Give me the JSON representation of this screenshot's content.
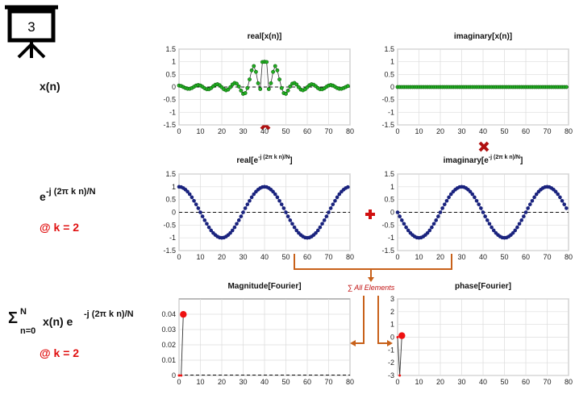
{
  "slide": {
    "number": "3"
  },
  "labels": {
    "xn": "x(n)",
    "kernel_e": "e",
    "kernel_exp": "-j (2π k n)/N",
    "k_note_1": "@ k = 2",
    "sum_sigma": "Σ",
    "sum_upper": "N",
    "sum_lower": "n=0",
    "sum_body": "x(n) e",
    "sum_exp": "-j (2π k n)/N",
    "k_note_2": "@ k = 2",
    "sum_all": "∑ All Elements"
  },
  "colors": {
    "green": "#22b022",
    "navy": "#1a237e",
    "red": "#ee1111",
    "arrow": "#c8611a"
  },
  "chart_data": [
    {
      "id": "real-x",
      "type": "line",
      "title": "real[x(n)]",
      "xlim": [
        0,
        80
      ],
      "ylim": [
        -1.5,
        1.5
      ],
      "xticks": [
        0,
        10,
        20,
        30,
        40,
        50,
        60,
        70,
        80
      ],
      "yticks": [
        1.5,
        1,
        0.5,
        0,
        -0.5,
        -1,
        -1.5
      ],
      "ytick_labels": [
        "1.5",
        "1",
        "0.5",
        "0",
        "-0.5",
        "-1",
        "-1.5"
      ],
      "grid": true,
      "zero_line": true,
      "series": [
        {
          "x": [
            0,
            1,
            2,
            3,
            4,
            5,
            6,
            7,
            8,
            9,
            10,
            11,
            12,
            13,
            14,
            15,
            16,
            17,
            18,
            19,
            20,
            21,
            22,
            23,
            24,
            25,
            26,
            27,
            28,
            29,
            30,
            31,
            32,
            33,
            34,
            35,
            36,
            37,
            38,
            39,
            40,
            41,
            42,
            43,
            44,
            45,
            46,
            47,
            48,
            49,
            50,
            51,
            52,
            53,
            54,
            55,
            56,
            57,
            58,
            59,
            60,
            61,
            62,
            63,
            64,
            65,
            66,
            67,
            68,
            69,
            70,
            71,
            72,
            73,
            74,
            75,
            76,
            77,
            78,
            79
          ],
          "y": [
            0.06,
            0.04,
            0.0,
            -0.04,
            -0.07,
            -0.07,
            -0.04,
            0.01,
            0.06,
            0.08,
            0.06,
            0.01,
            -0.05,
            -0.09,
            -0.09,
            -0.04,
            0.03,
            0.09,
            0.11,
            0.07,
            -0.01,
            -0.09,
            -0.13,
            -0.1,
            -0.01,
            0.1,
            0.16,
            0.13,
            0.02,
            -0.14,
            -0.27,
            -0.24,
            -0.04,
            0.3,
            0.66,
            0.83,
            0.6,
            0.15,
            -0.08,
            0.99,
            1.0,
            0.99,
            -0.08,
            0.15,
            0.6,
            0.83,
            0.66,
            0.3,
            -0.04,
            -0.24,
            -0.27,
            -0.14,
            0.02,
            0.13,
            0.16,
            0.1,
            -0.01,
            -0.1,
            -0.13,
            -0.09,
            -0.01,
            0.07,
            0.11,
            0.09,
            0.03,
            -0.04,
            -0.09,
            -0.09,
            -0.05,
            0.01,
            0.06,
            0.08,
            0.06,
            0.01,
            -0.04,
            -0.07,
            -0.07,
            -0.04,
            0.0,
            0.04
          ]
        }
      ]
    },
    {
      "id": "imag-x",
      "type": "line",
      "title": "imaginary[x(n)]",
      "xlim": [
        0,
        80
      ],
      "ylim": [
        -1.5,
        1.5
      ],
      "xticks": [
        0,
        10,
        20,
        30,
        40,
        50,
        60,
        70,
        80
      ],
      "yticks": [
        1.5,
        1,
        0.5,
        0,
        -0.5,
        -1,
        -1.5
      ],
      "ytick_labels": [
        "1.5",
        "1",
        "0.5",
        "0",
        "-0.5",
        "-1",
        "-1.5"
      ],
      "grid": true,
      "zero_line": true,
      "series": [
        {
          "x": [
            0,
            1,
            2,
            3,
            4,
            5,
            6,
            7,
            8,
            9,
            10,
            11,
            12,
            13,
            14,
            15,
            16,
            17,
            18,
            19,
            20,
            21,
            22,
            23,
            24,
            25,
            26,
            27,
            28,
            29,
            30,
            31,
            32,
            33,
            34,
            35,
            36,
            37,
            38,
            39,
            40,
            41,
            42,
            43,
            44,
            45,
            46,
            47,
            48,
            49,
            50,
            51,
            52,
            53,
            54,
            55,
            56,
            57,
            58,
            59,
            60,
            61,
            62,
            63,
            64,
            65,
            66,
            67,
            68,
            69,
            70,
            71,
            72,
            73,
            74,
            75,
            76,
            77,
            78,
            79
          ],
          "y": [
            0,
            0,
            0,
            0,
            0,
            0,
            0,
            0,
            0,
            0,
            0,
            0,
            0,
            0,
            0,
            0,
            0,
            0,
            0,
            0,
            0,
            0,
            0,
            0,
            0,
            0,
            0,
            0,
            0,
            0,
            0,
            0,
            0,
            0,
            0,
            0,
            0,
            0,
            0,
            0,
            0,
            0,
            0,
            0,
            0,
            0,
            0,
            0,
            0,
            0,
            0,
            0,
            0,
            0,
            0,
            0,
            0,
            0,
            0,
            0,
            0,
            0,
            0,
            0,
            0,
            0,
            0,
            0,
            0,
            0,
            0,
            0,
            0,
            0,
            0,
            0,
            0,
            0,
            0,
            0
          ]
        }
      ]
    },
    {
      "id": "real-kernel",
      "type": "line",
      "title_main": "real[e",
      "title_exp": "-j (2π k n)/N",
      "title_end": "]",
      "xlim": [
        0,
        80
      ],
      "ylim": [
        -1.5,
        1.5
      ],
      "xticks": [
        0,
        10,
        20,
        30,
        40,
        50,
        60,
        70,
        80
      ],
      "yticks": [
        1.5,
        1,
        0.5,
        0,
        -0.5,
        -1,
        -1.5
      ],
      "ytick_labels": [
        "1.5",
        "1",
        "0.5",
        "0",
        "-0.5",
        "-1",
        "-1.5"
      ],
      "grid": true,
      "zero_line": true,
      "series": [
        {
          "x": [
            0,
            1,
            2,
            3,
            4,
            5,
            6,
            7,
            8,
            9,
            10,
            11,
            12,
            13,
            14,
            15,
            16,
            17,
            18,
            19,
            20,
            21,
            22,
            23,
            24,
            25,
            26,
            27,
            28,
            29,
            30,
            31,
            32,
            33,
            34,
            35,
            36,
            37,
            38,
            39,
            40,
            41,
            42,
            43,
            44,
            45,
            46,
            47,
            48,
            49,
            50,
            51,
            52,
            53,
            54,
            55,
            56,
            57,
            58,
            59,
            60,
            61,
            62,
            63,
            64,
            65,
            66,
            67,
            68,
            69,
            70,
            71,
            72,
            73,
            74,
            75,
            76,
            77,
            78,
            79
          ],
          "y": [
            1.0,
            0.99,
            0.95,
            0.89,
            0.81,
            0.71,
            0.59,
            0.45,
            0.31,
            0.16,
            0.0,
            -0.16,
            -0.31,
            -0.45,
            -0.59,
            -0.71,
            -0.81,
            -0.89,
            -0.95,
            -0.99,
            -1.0,
            -0.99,
            -0.95,
            -0.89,
            -0.81,
            -0.71,
            -0.59,
            -0.45,
            -0.31,
            -0.16,
            0.0,
            0.16,
            0.31,
            0.45,
            0.59,
            0.71,
            0.81,
            0.89,
            0.95,
            0.99,
            1.0,
            0.99,
            0.95,
            0.89,
            0.81,
            0.71,
            0.59,
            0.45,
            0.31,
            0.16,
            0.0,
            -0.16,
            -0.31,
            -0.45,
            -0.59,
            -0.71,
            -0.81,
            -0.89,
            -0.95,
            -0.99,
            -1.0,
            -0.99,
            -0.95,
            -0.89,
            -0.81,
            -0.71,
            -0.59,
            -0.45,
            -0.31,
            -0.16,
            0.0,
            0.16,
            0.31,
            0.45,
            0.59,
            0.71,
            0.81,
            0.89,
            0.95,
            0.99
          ]
        }
      ]
    },
    {
      "id": "imag-kernel",
      "type": "line",
      "title_main": "imaginary[e",
      "title_exp": "-j (2π k n)/N",
      "title_end": "]",
      "xlim": [
        0,
        80
      ],
      "ylim": [
        -1.5,
        1.5
      ],
      "xticks": [
        0,
        10,
        20,
        30,
        40,
        50,
        60,
        70,
        80
      ],
      "yticks": [
        1.5,
        1,
        0.5,
        0,
        -0.5,
        -1,
        -1.5
      ],
      "ytick_labels": [
        "1.5",
        "1",
        "0.5",
        "0",
        "-0.5",
        "-1",
        "-1.5"
      ],
      "grid": true,
      "zero_line": true,
      "series": [
        {
          "x": [
            0,
            1,
            2,
            3,
            4,
            5,
            6,
            7,
            8,
            9,
            10,
            11,
            12,
            13,
            14,
            15,
            16,
            17,
            18,
            19,
            20,
            21,
            22,
            23,
            24,
            25,
            26,
            27,
            28,
            29,
            30,
            31,
            32,
            33,
            34,
            35,
            36,
            37,
            38,
            39,
            40,
            41,
            42,
            43,
            44,
            45,
            46,
            47,
            48,
            49,
            50,
            51,
            52,
            53,
            54,
            55,
            56,
            57,
            58,
            59,
            60,
            61,
            62,
            63,
            64,
            65,
            66,
            67,
            68,
            69,
            70,
            71,
            72,
            73,
            74,
            75,
            76,
            77,
            78,
            79
          ],
          "y": [
            0.0,
            -0.16,
            -0.31,
            -0.45,
            -0.59,
            -0.71,
            -0.81,
            -0.89,
            -0.95,
            -0.99,
            -1.0,
            -0.99,
            -0.95,
            -0.89,
            -0.81,
            -0.71,
            -0.59,
            -0.45,
            -0.31,
            -0.16,
            0.0,
            0.16,
            0.31,
            0.45,
            0.59,
            0.71,
            0.81,
            0.89,
            0.95,
            0.99,
            1.0,
            0.99,
            0.95,
            0.89,
            0.81,
            0.71,
            0.59,
            0.45,
            0.31,
            0.16,
            0.0,
            -0.16,
            -0.31,
            -0.45,
            -0.59,
            -0.71,
            -0.81,
            -0.89,
            -0.95,
            -0.99,
            -1.0,
            -0.99,
            -0.95,
            -0.89,
            -0.81,
            -0.71,
            -0.59,
            -0.45,
            -0.31,
            -0.16,
            0.0,
            0.16,
            0.31,
            0.45,
            0.59,
            0.71,
            0.81,
            0.89,
            0.95,
            0.99,
            1.0,
            0.99,
            0.95,
            0.89,
            0.81,
            0.71,
            0.59,
            0.45,
            0.31,
            0.16
          ]
        }
      ]
    },
    {
      "id": "magnitude",
      "type": "line",
      "title": "Magnitude[Fourier]",
      "xlim": [
        0,
        80
      ],
      "ylim": [
        0,
        0.05
      ],
      "xticks": [
        0,
        10,
        20,
        30,
        40,
        50,
        60,
        70,
        80
      ],
      "yticks": [
        0.04,
        0.03,
        0.02,
        0.01,
        0
      ],
      "ytick_labels": [
        "0.04",
        "0.03",
        "0.02",
        "0.01",
        "0"
      ],
      "grid": true,
      "zero_line": false,
      "series": [
        {
          "x": [
            0,
            1,
            2
          ],
          "y": [
            0.0,
            0.0,
            0.0399
          ]
        }
      ],
      "highlight": [
        {
          "x": 2,
          "y": 0.0399
        }
      ],
      "baseline_dashed": true
    },
    {
      "id": "phase",
      "type": "line",
      "title": "phase[Fourier]",
      "xlim": [
        0,
        80
      ],
      "ylim": [
        -3,
        3
      ],
      "xticks": [
        0,
        10,
        20,
        30,
        40,
        50,
        60,
        70,
        80
      ],
      "yticks": [
        3,
        2,
        1,
        0,
        -1,
        -2,
        -3
      ],
      "ytick_labels": [
        "3",
        "2",
        "1",
        "0",
        "-1",
        "-2",
        "-3"
      ],
      "grid": true,
      "zero_line": false,
      "series": [
        {
          "x": [
            0,
            1,
            2
          ],
          "y": [
            0.0,
            -3.0,
            0.12
          ]
        }
      ],
      "highlight": [
        {
          "x": 2,
          "y": 0.12
        }
      ]
    }
  ]
}
